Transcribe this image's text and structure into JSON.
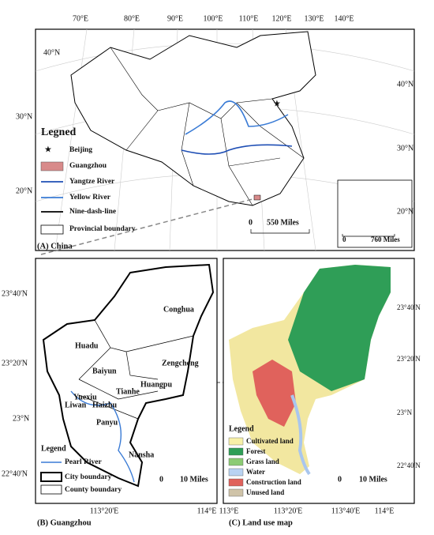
{
  "panel_a": {
    "caption": "(A) China",
    "lon_labels": [
      "70°E",
      "80°E",
      "90°E",
      "100°E",
      "110°E",
      "120°E",
      "130°E",
      "140°E"
    ],
    "lat_labels_left": [
      "40°N",
      "30°N",
      "20°N"
    ],
    "lat_labels_right": [
      "40°N",
      "30°N",
      "20°N"
    ],
    "legend": {
      "title": "Legned",
      "items": [
        "Beijing",
        "Guangzhou",
        "Yangtze River",
        "Yellow River",
        "Nine-dash-line",
        "Provincial boundary"
      ]
    },
    "scale": {
      "zero": "0",
      "length": "550 Miles"
    },
    "inset_scale": {
      "zero": "0",
      "length": "760 Miles"
    }
  },
  "panel_b": {
    "caption": "(B) Guangzhou",
    "lat_labels": [
      "23°40'N",
      "23°20'N",
      "23°N",
      "22°40'N"
    ],
    "lon_labels": [
      "113°20'E",
      "114°E"
    ],
    "districts": [
      "Conghua",
      "Huadu",
      "Zengcheng",
      "Baiyun",
      "Huangpu",
      "Tianhe",
      "Yuexiu",
      "Liwan",
      "Haizhu",
      "Panyu",
      "Nansha"
    ],
    "legend": {
      "title": "Legend",
      "items": [
        "Pearl River",
        "City boundary",
        "County boundary"
      ]
    },
    "scale": {
      "zero": "0",
      "length": "10 Miles"
    }
  },
  "panel_c": {
    "caption": "(C) Land use map",
    "lon_labels": [
      "113°E",
      "113°20'E",
      "113°40'E",
      "114°E"
    ],
    "lat_labels": [
      "23°40'N",
      "23°20'N",
      "23°N",
      "22°40'N"
    ],
    "legend": {
      "title": "Legend",
      "items": [
        "Cultivated land",
        "Forest",
        "Grass land",
        "Water",
        "Construction land",
        "Unused land"
      ]
    },
    "scale": {
      "zero": "0",
      "length": "10 Miles"
    }
  }
}
